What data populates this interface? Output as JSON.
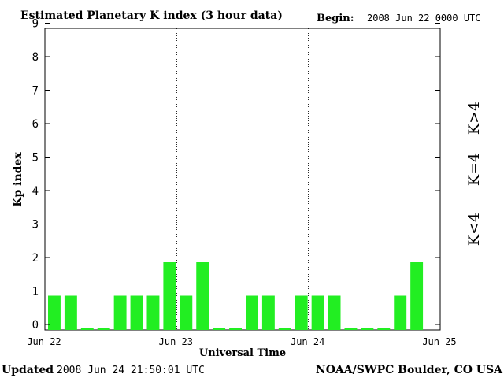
{
  "header": {
    "title": "Estimated Planetary K index (3 hour data)",
    "begin_label": "Begin:",
    "begin_value": "2008 Jun 22 0000 UTC"
  },
  "footer": {
    "updated_label": "Updated",
    "updated_value": "2008 Jun 24 21:50:01 UTC",
    "source": "NOAA/SWPC Boulder, CO USA"
  },
  "legend": {
    "high": {
      "text": "K>4",
      "color": "#ff2000"
    },
    "equal": {
      "text": "K=4",
      "color": "#ffd000"
    },
    "low": {
      "text": "K<4",
      "color": "#22ee22"
    }
  },
  "chart_data": {
    "type": "bar",
    "title": "Estimated Planetary K index (3 hour data)",
    "xlabel": "Universal Time",
    "ylabel": "Kp index",
    "ylim": [
      0,
      9
    ],
    "yticks": [
      "0",
      "1",
      "2",
      "3",
      "4",
      "5",
      "6",
      "7",
      "8",
      "9"
    ],
    "xticks": [
      "Jun 22",
      "Jun 23",
      "Jun 24",
      "Jun 25"
    ],
    "day_dividers": [
      "Jun 23",
      "Jun 24"
    ],
    "interval_hours": 3,
    "values": [
      1,
      1,
      0,
      0,
      1,
      1,
      1,
      2,
      1,
      2,
      0,
      0,
      1,
      1,
      0,
      1,
      1,
      1,
      0,
      0,
      0,
      1,
      2
    ],
    "bar_color": "#22ee22",
    "grid": false
  }
}
